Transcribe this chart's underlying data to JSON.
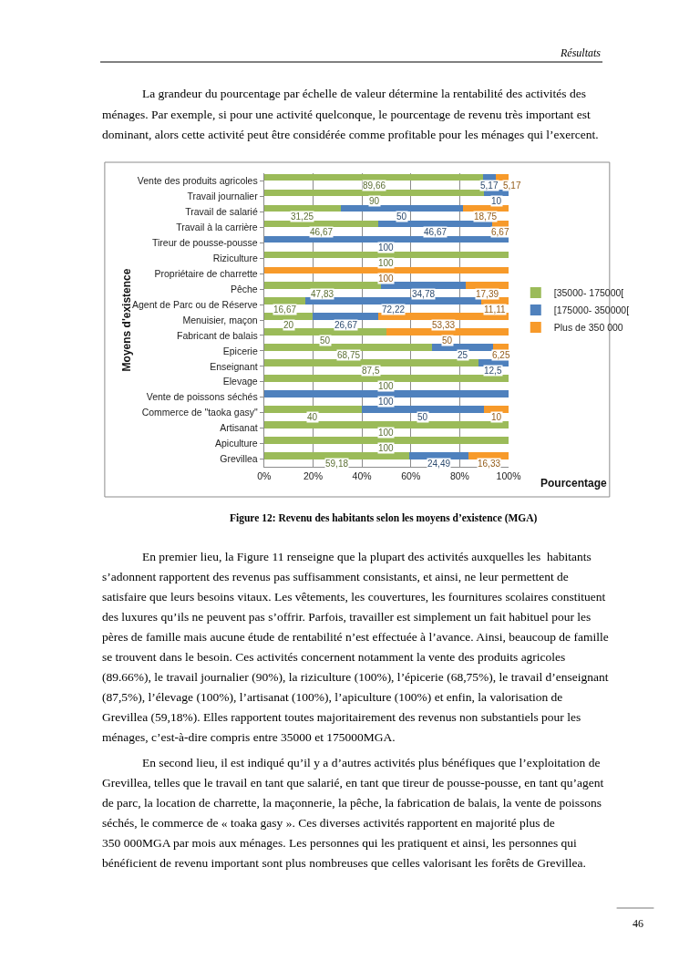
{
  "chart_data": {
    "type": "bar",
    "orientation": "horizontal",
    "stacked": true,
    "xlabel": "Pourcentage",
    "ylabel": "Moyens d'existence",
    "categories": [
      "Vente des produits agricoles",
      "Travail journalier",
      "Travail de salarié",
      "Travail à la carrière",
      "Tireur de pousse-pousse",
      "Riziculture",
      "Propriétaire de charrette",
      "Pêche",
      "Agent de Parc ou de Réserve",
      "Menuisier, maçon",
      "Fabricant de balais",
      "Epicerie",
      "Enseignant",
      "Elevage",
      "Vente de poissons séchés",
      "Commerce de \"taoka gasy\"",
      "Artisanat",
      "Apiculture",
      "Grevillea"
    ],
    "series": [
      {
        "name": "[35000- 175000[",
        "color": "#9bbb59",
        "values": [
          89.66,
          90,
          31.25,
          46.67,
          0,
          100,
          0,
          47.83,
          16.67,
          20,
          50,
          68.75,
          87.5,
          100,
          0,
          40,
          100,
          100,
          59.18
        ],
        "value_labels": [
          "89,66",
          "90",
          "31,25",
          "46,67",
          null,
          "100",
          null,
          "47,83",
          "16,67",
          "20",
          "50",
          "68,75",
          "87,5",
          "100",
          null,
          "40",
          "100",
          "100",
          "59,18"
        ]
      },
      {
        "name": "[175000- 350000[",
        "color": "#4f81bd",
        "values": [
          5.17,
          10,
          50,
          46.67,
          100,
          0,
          0,
          34.78,
          72.22,
          26.67,
          0,
          25,
          12.5,
          0,
          100,
          50,
          0,
          0,
          24.49
        ],
        "value_labels": [
          "5,17",
          "10",
          "50",
          "46,67",
          "100",
          null,
          null,
          "34,78",
          "72,22",
          "26,67",
          null,
          "25",
          "12,5",
          null,
          "100",
          "50",
          null,
          null,
          "24,49"
        ]
      },
      {
        "name": "Plus de 350 000",
        "color": "#f79a2a",
        "values": [
          5.17,
          0,
          18.75,
          6.67,
          0,
          0,
          100,
          17.39,
          11.11,
          53.33,
          50,
          6.25,
          0,
          0,
          0,
          10,
          0,
          0,
          16.33
        ],
        "value_labels": [
          "5,17",
          null,
          "18,75",
          "6,67",
          null,
          null,
          "100",
          "17,39",
          "11,11",
          "53,33",
          "50",
          "6,25",
          null,
          null,
          null,
          "10",
          null,
          null,
          "16,33"
        ]
      }
    ],
    "xlim": [
      0,
      100
    ],
    "xticks": [
      {
        "value": 0,
        "label": "0%"
      },
      {
        "value": 20,
        "label": "20%"
      },
      {
        "value": 40,
        "label": "40%"
      },
      {
        "value": 60,
        "label": "60%"
      },
      {
        "value": 80,
        "label": "80%"
      },
      {
        "value": 100,
        "label": "100%"
      }
    ],
    "grid": "x",
    "legend": "right",
    "annotations": [
      "Résultats",
      "La grandeur du pourcentage par échelle de valeur détermine la rentabilité des activités des\nménages. Par exemple, si pour une activité quelconque, le pourcentage de revenu très important est\ndominant, alors cette activité peut être considérée comme profitable pour les ménages qui l’exercent.",
      "Figure 12: Revenu des habitants selon les moyens d’existence (MGA)",
      "En premier lieu, la Figure 11 renseigne que la plupart des activités auxquelles les  habitants\ns’adonnent rapportent des revenus pas suffisamment consistants, et ainsi, ne leur permettent de\nsatisfaire que leurs besoins vitaux. Les vêtements, les couvertures, les fournitures scolaires constituent\ndes luxures qu’ils ne peuvent pas s’offrir. Parfois, travailler est simplement un fait habituel pour les\npères de famille mais aucune étude de rentabilité n’est effectuée à l’avance. Ainsi, beaucoup de famille\nse trouvent dans le besoin. Ces activités concernent notamment la vente des produits agricoles\n(89.66%), le travail journalier (90%), la riziculture (100%), l’épicerie (68,75%), le travail d’enseignant\n(87,5%), l’élevage (100%), l’artisanat (100%), l’apiculture (100%) et enfin, la valorisation de\nGrevillea (59,18%). Elles rapportent toutes majoritairement des revenus non substantiels pour les\nménages, c’est-à-dire compris entre 35000 et 175000MGA.",
      "En second lieu, il est indiqué qu’il y a d’autres activités plus bénéfiques que l’exploitation de\nGrevillea, telles que le travail en tant que salarié, en tant que tireur de pousse-pousse, en tant qu’agent\nde parc, la location de charrette, la maçonnerie, la pêche, la fabrication de balais, la vente de poissons\nséchés, le commerce de « toaka gasy ». Ces diverses activités rapportent en majorité plus de\n350 000MGA par mois aux ménages. Les personnes qui les pratiquent et ainsi, les personnes qui\nbénéficient de revenu important sont plus nombreuses que celles valorisant les forêts de Grevillea.",
      "46"
    ]
  }
}
